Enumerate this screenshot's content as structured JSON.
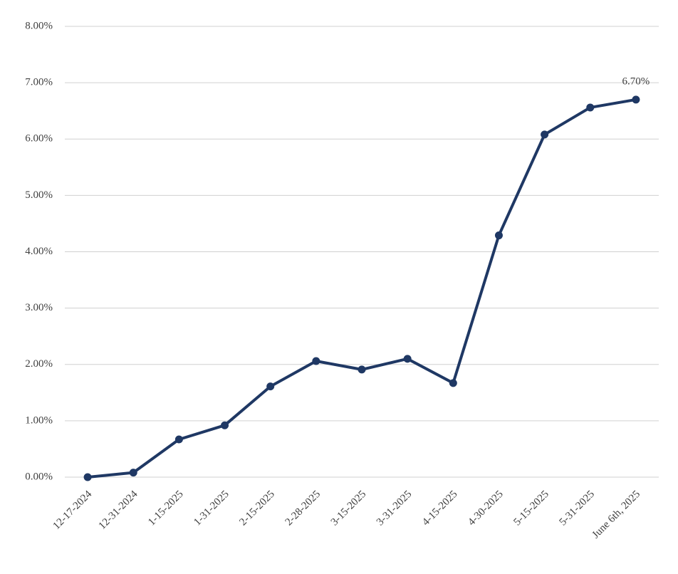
{
  "chart_data": {
    "type": "line",
    "categories": [
      "12-17-2024",
      "12-31-2024",
      "1-15-2025",
      "1-31-2025",
      "2-15-2025",
      "2-28-2025",
      "3-15-2025",
      "3-31-2025",
      "4-15-2025",
      "4-30-2025",
      "5-15-2025",
      "5-31-2025",
      "June 6th, 2025"
    ],
    "series": [
      {
        "color": "#1f3864",
        "values": [
          0,
          0.08,
          0.67,
          0.92,
          1.61,
          2.06,
          1.91,
          2.1,
          1.67,
          4.29,
          6.08,
          6.56,
          6.7
        ],
        "value_labels": [
          null,
          null,
          null,
          null,
          null,
          null,
          null,
          null,
          null,
          null,
          null,
          null,
          "6.70%"
        ]
      }
    ],
    "ylim": [
      0,
      8
    ],
    "yticks": [
      {
        "value": 0,
        "label": "0.00%"
      },
      {
        "value": 1,
        "label": "1.00%"
      },
      {
        "value": 2,
        "label": "2.00%"
      },
      {
        "value": 3,
        "label": "3.00%"
      },
      {
        "value": 4,
        "label": "4.00%"
      },
      {
        "value": 5,
        "label": "5.00%"
      },
      {
        "value": 6,
        "label": "6.00%"
      },
      {
        "value": 7,
        "label": "7.00%"
      },
      {
        "value": 8,
        "label": "8.00%"
      }
    ],
    "grid": true
  }
}
